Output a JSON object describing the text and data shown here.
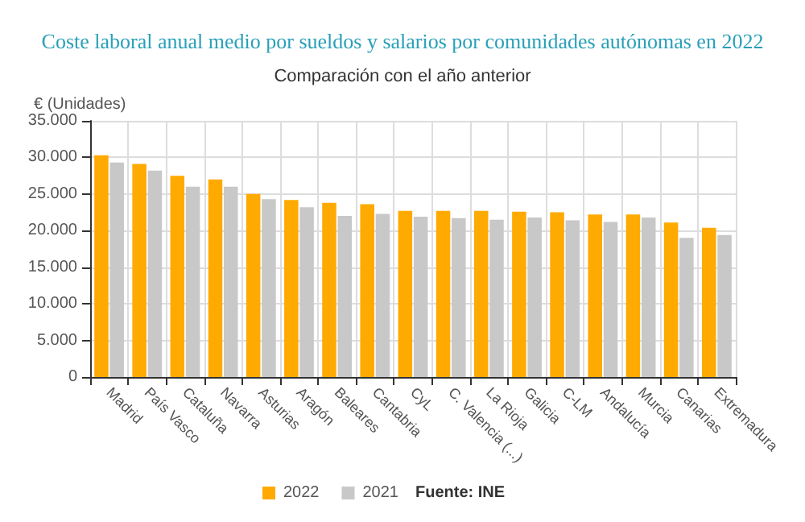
{
  "chart_data": {
    "type": "bar",
    "title": "Coste laboral anual medio por sueldos y salarios por comunidades autónomas en 2022",
    "subtitle": "Comparación con el año anterior",
    "ylabel": "€ (Unidades)",
    "categories": [
      "Madrid",
      "País Vasco",
      "Cataluña",
      "Navarra",
      "Asturias",
      "Aragón",
      "Baleares",
      "Cantabria",
      "CyL",
      "C. Valencia (...)",
      "La Rioja",
      "Galicia",
      "C-LM",
      "Andalucía",
      "Murcia",
      "Canarias",
      "Extremadura"
    ],
    "series": [
      {
        "name": "2022",
        "color": "#ffaa00",
        "values": [
          30300,
          29100,
          27500,
          27000,
          25000,
          24200,
          23800,
          23600,
          22700,
          22700,
          22700,
          22600,
          22500,
          22200,
          22200,
          21100,
          20400
        ]
      },
      {
        "name": "2021",
        "color": "#c8c8c8",
        "values": [
          29300,
          28200,
          26000,
          26000,
          24300,
          23200,
          22000,
          22300,
          21900,
          21700,
          21500,
          21800,
          21400,
          21200,
          21800,
          19000,
          19400
        ]
      }
    ],
    "ylim": [
      0,
      35000
    ],
    "yticks": [
      {
        "value": 0,
        "label": "0"
      },
      {
        "value": 5000,
        "label": "5.000"
      },
      {
        "value": 10000,
        "label": "10.000"
      },
      {
        "value": 15000,
        "label": "15.000"
      },
      {
        "value": 20000,
        "label": "20.000"
      },
      {
        "value": 25000,
        "label": "25.000"
      },
      {
        "value": 30000,
        "label": "30.000"
      },
      {
        "value": 35000,
        "label": "35.000"
      }
    ],
    "grid": true,
    "legend": "bottom",
    "annotations": [
      "Fuente: INE"
    ]
  }
}
